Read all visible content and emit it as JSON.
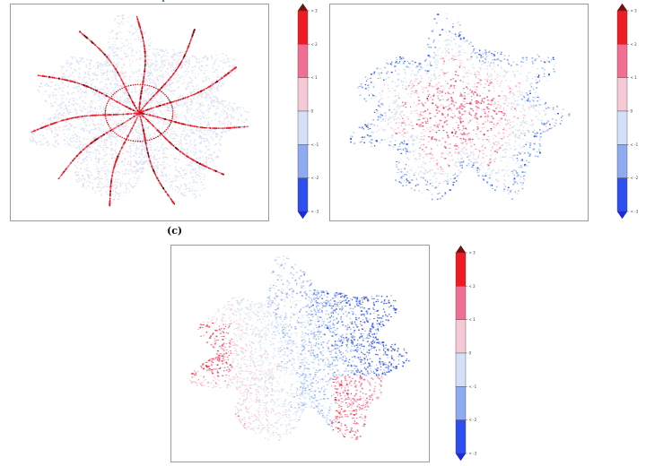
{
  "panels": [
    {
      "id": "a",
      "label": "",
      "pattern": "network"
    },
    {
      "id": "b",
      "label": "",
      "pattern": "radial"
    },
    {
      "id": "c",
      "label": "(c)",
      "pattern": "east-west"
    }
  ],
  "colorbars": [
    {
      "title": "",
      "tick_labels": [
        "> 3",
        "< 2",
        "< 1",
        "0",
        "< -1",
        "< -2",
        "< -3"
      ]
    },
    {
      "title": "",
      "tick_labels": [
        "> 3",
        "< 2",
        "< 1",
        "0",
        "< -1",
        "< -2",
        "< -3"
      ]
    },
    {
      "title": "",
      "tick_labels": [
        "> 3",
        "< 2",
        "< 1",
        "0",
        "< -1",
        "< -2",
        "< -3"
      ]
    }
  ],
  "scale": {
    "bins": [
      "> 3",
      "2 to 3",
      "1 to 2",
      "0 to 1",
      "-1 to 0",
      "-2 to -1",
      "-3 to -2",
      "< -3"
    ],
    "colors": {
      "over": "#7a1010",
      "b3": "#ee1b24",
      "b2": "#f06f92",
      "b1": "#f6c9d7",
      "b0": "#d4e0f7",
      "bm1": "#8eabf1",
      "bm2": "#2e4ff0",
      "under": "#1a28e8"
    }
  }
}
